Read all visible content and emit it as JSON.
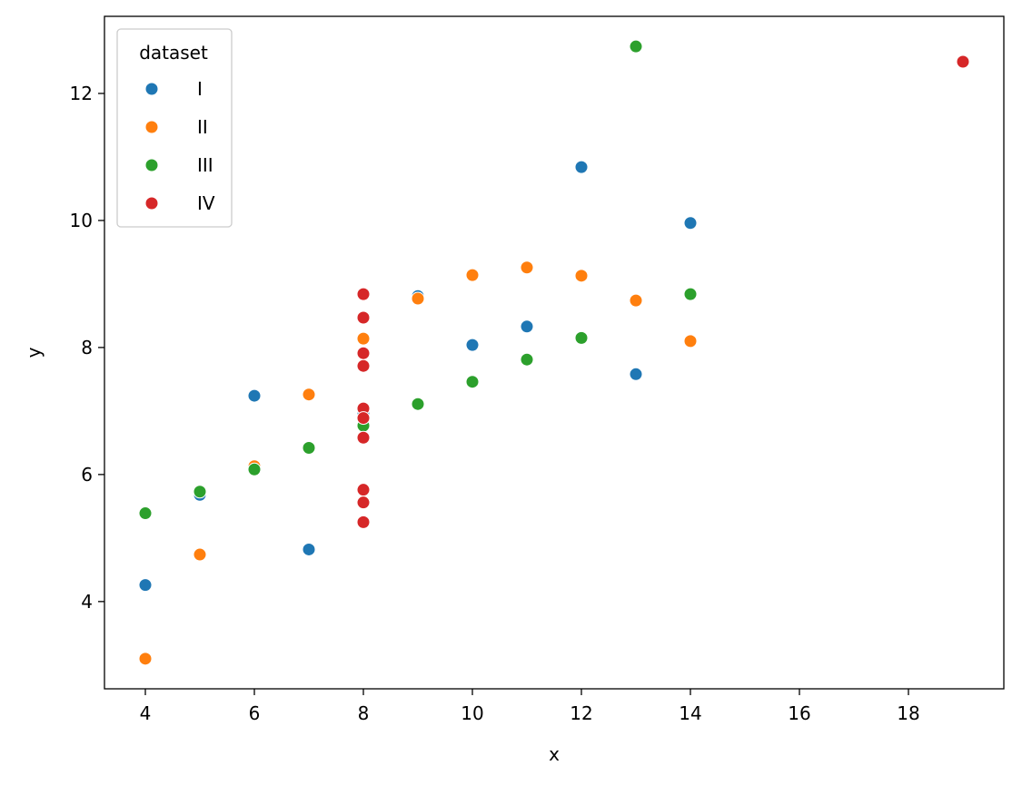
{
  "chart_data": {
    "type": "scatter",
    "xlabel": "x",
    "ylabel": "y",
    "xlim": [
      3.25,
      19.75
    ],
    "ylim": [
      2.626,
      13.214
    ],
    "xticks": [
      4,
      6,
      8,
      10,
      12,
      14,
      16,
      18
    ],
    "yticks": [
      4,
      6,
      8,
      10,
      12
    ],
    "grid": false,
    "legend": {
      "title": "dataset",
      "placement": "top-left"
    },
    "series": [
      {
        "name": "I",
        "color": "#1f77b4",
        "points": [
          [
            10,
            8.04
          ],
          [
            8,
            6.95
          ],
          [
            13,
            7.58
          ],
          [
            9,
            8.81
          ],
          [
            11,
            8.33
          ],
          [
            14,
            9.96
          ],
          [
            6,
            7.24
          ],
          [
            4,
            4.26
          ],
          [
            12,
            10.84
          ],
          [
            7,
            4.82
          ],
          [
            5,
            5.68
          ]
        ]
      },
      {
        "name": "II",
        "color": "#ff7f0e",
        "points": [
          [
            10,
            9.14
          ],
          [
            8,
            8.14
          ],
          [
            13,
            8.74
          ],
          [
            9,
            8.77
          ],
          [
            11,
            9.26
          ],
          [
            14,
            8.1
          ],
          [
            6,
            6.13
          ],
          [
            4,
            3.1
          ],
          [
            12,
            9.13
          ],
          [
            7,
            7.26
          ],
          [
            5,
            4.74
          ]
        ]
      },
      {
        "name": "III",
        "color": "#2ca02c",
        "points": [
          [
            10,
            7.46
          ],
          [
            8,
            6.77
          ],
          [
            13,
            12.74
          ],
          [
            9,
            7.11
          ],
          [
            11,
            7.81
          ],
          [
            14,
            8.84
          ],
          [
            6,
            6.08
          ],
          [
            4,
            5.39
          ],
          [
            12,
            8.15
          ],
          [
            7,
            6.42
          ],
          [
            5,
            5.73
          ]
        ]
      },
      {
        "name": "IV",
        "color": "#d62728",
        "points": [
          [
            8,
            6.58
          ],
          [
            8,
            5.76
          ],
          [
            8,
            7.71
          ],
          [
            8,
            8.84
          ],
          [
            8,
            8.47
          ],
          [
            8,
            7.04
          ],
          [
            8,
            5.25
          ],
          [
            19,
            12.5
          ],
          [
            8,
            5.56
          ],
          [
            8,
            7.91
          ],
          [
            8,
            6.89
          ]
        ]
      }
    ]
  }
}
